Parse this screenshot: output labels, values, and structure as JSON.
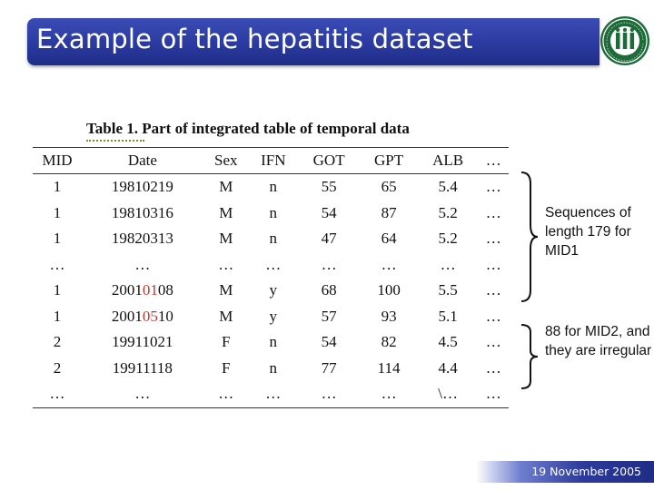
{
  "slide": {
    "title": "Example of the hepatitis dataset",
    "date": "19 November 2005"
  },
  "table": {
    "caption": "Table 1. Part of integrated table of temporal data",
    "columns": [
      "MID",
      "Date",
      "Sex",
      "IFN",
      "GOT",
      "GPT",
      "ALB",
      "…"
    ],
    "rows": [
      {
        "mid": "1",
        "date_a": "19810219",
        "date_hl": "",
        "date_b": "",
        "sex": "M",
        "ifn": "n",
        "got": "55",
        "gpt": "65",
        "alb": "5.4",
        "more": "…"
      },
      {
        "mid": "1",
        "date_a": "19810316",
        "date_hl": "",
        "date_b": "",
        "sex": "M",
        "ifn": "n",
        "got": "54",
        "gpt": "87",
        "alb": "5.2",
        "more": "…"
      },
      {
        "mid": "1",
        "date_a": "19820313",
        "date_hl": "",
        "date_b": "",
        "sex": "M",
        "ifn": "n",
        "got": "47",
        "gpt": "64",
        "alb": "5.2",
        "more": "…"
      },
      {
        "mid": "…",
        "date_a": "…",
        "date_hl": "",
        "date_b": "",
        "sex": "…",
        "ifn": "…",
        "got": "…",
        "gpt": "…",
        "alb": "…",
        "more": "…"
      },
      {
        "mid": "1",
        "date_a": "2001",
        "date_hl": "01",
        "date_b": "08",
        "sex": "M",
        "ifn": "y",
        "got": "68",
        "gpt": "100",
        "alb": "5.5",
        "more": "…"
      },
      {
        "mid": "1",
        "date_a": "2001",
        "date_hl": "05",
        "date_b": "10",
        "sex": "M",
        "ifn": "y",
        "got": "57",
        "gpt": "93",
        "alb": "5.1",
        "more": "…"
      },
      {
        "mid": "2",
        "date_a": "19911021",
        "date_hl": "",
        "date_b": "",
        "sex": "F",
        "ifn": "n",
        "got": "54",
        "gpt": "82",
        "alb": "4.5",
        "more": "…"
      },
      {
        "mid": "2",
        "date_a": "19911118",
        "date_hl": "",
        "date_b": "",
        "sex": "F",
        "ifn": "n",
        "got": "77",
        "gpt": "114",
        "alb": "4.4",
        "more": "…"
      },
      {
        "mid": "…",
        "date_a": "…",
        "date_hl": "",
        "date_b": "",
        "sex": "…",
        "ifn": "…",
        "got": "…",
        "gpt": "…",
        "alb": "\\…",
        "more": "…"
      }
    ]
  },
  "annotations": {
    "mid1_note": "Sequences of length 179 for MID1",
    "mid2_note": "88 for MID2, and they are irregular"
  },
  "colors": {
    "title_bar": "#2a3aa0",
    "highlight": "#c0392b",
    "logo_green": "#1e6b3a"
  },
  "icons": {
    "logo": "university-seal-icon"
  }
}
